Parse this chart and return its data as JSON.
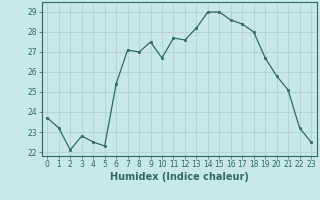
{
  "x": [
    0,
    1,
    2,
    3,
    4,
    5,
    6,
    7,
    8,
    9,
    10,
    11,
    12,
    13,
    14,
    15,
    16,
    17,
    18,
    19,
    20,
    21,
    22,
    23
  ],
  "y": [
    23.7,
    23.2,
    22.1,
    22.8,
    22.5,
    22.3,
    25.4,
    27.1,
    27.0,
    27.5,
    26.7,
    27.7,
    27.6,
    28.2,
    29.0,
    29.0,
    28.6,
    28.4,
    28.0,
    26.7,
    25.8,
    25.1,
    23.2,
    22.5
  ],
  "line_color": "#2e6b5e",
  "marker": "s",
  "marker_size": 2,
  "bg_color": "#c8e8e8",
  "grid_color_major": "#b0cccc",
  "grid_color_minor": "#b8d8d8",
  "xlabel": "Humidex (Indice chaleur)",
  "xlim": [
    -0.5,
    23.5
  ],
  "ylim": [
    21.8,
    29.5
  ],
  "yticks": [
    22,
    23,
    24,
    25,
    26,
    27,
    28,
    29
  ],
  "xticks": [
    0,
    1,
    2,
    3,
    4,
    5,
    6,
    7,
    8,
    9,
    10,
    11,
    12,
    13,
    14,
    15,
    16,
    17,
    18,
    19,
    20,
    21,
    22,
    23
  ],
  "tick_color": "#2e6b5e",
  "xlabel_fontsize": 7,
  "tick_fontsize": 5.5
}
